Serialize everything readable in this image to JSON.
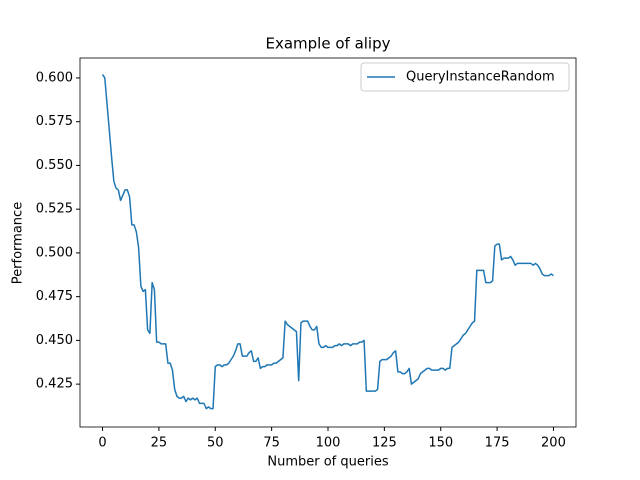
{
  "chart_data": {
    "type": "line",
    "title": "Example of alipy",
    "xlabel": "Number of queries",
    "ylabel": "Performance",
    "x": [
      0,
      1,
      2,
      3,
      4,
      5,
      6,
      7,
      8,
      9,
      10,
      11,
      12,
      13,
      14,
      15,
      16,
      17,
      18,
      19,
      20,
      21,
      22,
      23,
      24,
      25,
      26,
      27,
      28,
      29,
      30,
      31,
      32,
      33,
      34,
      35,
      36,
      37,
      38,
      39,
      40,
      41,
      42,
      43,
      44,
      45,
      46,
      47,
      48,
      49,
      50,
      51,
      52,
      53,
      54,
      55,
      56,
      57,
      58,
      59,
      60,
      61,
      62,
      63,
      64,
      65,
      66,
      67,
      68,
      69,
      70,
      71,
      72,
      73,
      74,
      75,
      76,
      77,
      78,
      79,
      80,
      81,
      82,
      83,
      84,
      85,
      86,
      87,
      88,
      89,
      90,
      91,
      92,
      93,
      94,
      95,
      96,
      97,
      98,
      99,
      100,
      101,
      102,
      103,
      104,
      105,
      106,
      107,
      108,
      109,
      110,
      111,
      112,
      113,
      114,
      115,
      116,
      117,
      118,
      119,
      120,
      121,
      122,
      123,
      124,
      125,
      126,
      127,
      128,
      129,
      130,
      131,
      132,
      133,
      134,
      135,
      136,
      137,
      138,
      139,
      140,
      141,
      142,
      143,
      144,
      145,
      146,
      147,
      148,
      149,
      150,
      151,
      152,
      153,
      154,
      155,
      156,
      157,
      158,
      159,
      160,
      161,
      162,
      163,
      164,
      165,
      166,
      167,
      168,
      169,
      170,
      171,
      172,
      173,
      174,
      175,
      176,
      177,
      178,
      179,
      180,
      181,
      182,
      183,
      184,
      185,
      186,
      187,
      188,
      189,
      190,
      191,
      192,
      193,
      194,
      195,
      196,
      197,
      198,
      199,
      200
    ],
    "series": [
      {
        "name": "QueryInstanceRandom",
        "color": "#1f77b4",
        "values": [
          0.602,
          0.6,
          0.585,
          0.57,
          0.555,
          0.541,
          0.537,
          0.536,
          0.53,
          0.533,
          0.536,
          0.536,
          0.532,
          0.516,
          0.516,
          0.512,
          0.503,
          0.481,
          0.478,
          0.479,
          0.456,
          0.454,
          0.483,
          0.479,
          0.449,
          0.449,
          0.448,
          0.448,
          0.448,
          0.437,
          0.437,
          0.433,
          0.422,
          0.418,
          0.417,
          0.417,
          0.418,
          0.415,
          0.417,
          0.416,
          0.417,
          0.416,
          0.417,
          0.414,
          0.414,
          0.414,
          0.411,
          0.412,
          0.411,
          0.411,
          0.435,
          0.436,
          0.436,
          0.435,
          0.436,
          0.436,
          0.437,
          0.439,
          0.441,
          0.444,
          0.448,
          0.448,
          0.441,
          0.441,
          0.441,
          0.443,
          0.444,
          0.438,
          0.438,
          0.44,
          0.434,
          0.435,
          0.435,
          0.436,
          0.436,
          0.436,
          0.437,
          0.437,
          0.438,
          0.439,
          0.44,
          0.461,
          0.459,
          0.458,
          0.457,
          0.456,
          0.455,
          0.427,
          0.46,
          0.461,
          0.461,
          0.461,
          0.458,
          0.456,
          0.456,
          0.458,
          0.448,
          0.446,
          0.446,
          0.447,
          0.446,
          0.446,
          0.446,
          0.447,
          0.447,
          0.448,
          0.447,
          0.448,
          0.448,
          0.448,
          0.447,
          0.448,
          0.448,
          0.448,
          0.449,
          0.449,
          0.45,
          0.421,
          0.421,
          0.421,
          0.421,
          0.421,
          0.422,
          0.438,
          0.439,
          0.439,
          0.439,
          0.44,
          0.441,
          0.443,
          0.444,
          0.432,
          0.432,
          0.431,
          0.431,
          0.432,
          0.434,
          0.425,
          0.426,
          0.427,
          0.428,
          0.431,
          0.432,
          0.433,
          0.434,
          0.434,
          0.433,
          0.433,
          0.433,
          0.433,
          0.434,
          0.434,
          0.433,
          0.434,
          0.434,
          0.446,
          0.447,
          0.448,
          0.449,
          0.451,
          0.453,
          0.454,
          0.456,
          0.458,
          0.46,
          0.461,
          0.49,
          0.49,
          0.49,
          0.49,
          0.483,
          0.483,
          0.483,
          0.484,
          0.504,
          0.505,
          0.505,
          0.496,
          0.497,
          0.497,
          0.497,
          0.498,
          0.496,
          0.493,
          0.494,
          0.494,
          0.494,
          0.494,
          0.494,
          0.494,
          0.494,
          0.493,
          0.494,
          0.493,
          0.491,
          0.488,
          0.487,
          0.487,
          0.487,
          0.488,
          0.487
        ]
      }
    ],
    "xlim": [
      -10,
      210
    ],
    "xticks": [
      0,
      25,
      50,
      75,
      100,
      125,
      150,
      175,
      200
    ],
    "ylim": [
      0.4005,
      0.6114
    ],
    "yticks": [
      0.425,
      {
        "value": 0.45,
        "label": "0.450"
      },
      0.475,
      {
        "value": 0.5,
        "label": "0.500"
      },
      0.525,
      {
        "value": 0.55,
        "label": "0.550"
      },
      0.575,
      {
        "value": 0.6,
        "label": "0.600"
      }
    ],
    "legend": "upper right"
  }
}
